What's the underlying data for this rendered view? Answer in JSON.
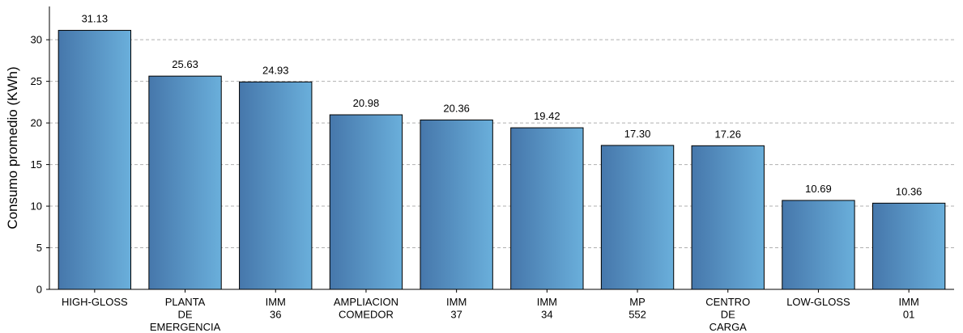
{
  "chart_data": {
    "type": "bar",
    "title": "",
    "xlabel": "",
    "ylabel": "Consumo promedio (KWh)",
    "ylim": [
      0,
      34
    ],
    "yticks": [
      0,
      5,
      10,
      15,
      20,
      25,
      30
    ],
    "grid": "horizontal dashed",
    "categories": [
      [
        "HIGH-GLOSS"
      ],
      [
        "PLANTA",
        "DE",
        "EMERGENCIA"
      ],
      [
        "IMM",
        "36"
      ],
      [
        "AMPLIACION",
        "COMEDOR"
      ],
      [
        "IMM",
        "37"
      ],
      [
        "IMM",
        "34"
      ],
      [
        "MP",
        "552"
      ],
      [
        "CENTRO",
        "DE",
        "CARGA"
      ],
      [
        "LOW-GLOSS"
      ],
      [
        "IMM",
        "01"
      ]
    ],
    "values": [
      31.13,
      25.63,
      24.93,
      20.98,
      20.36,
      19.42,
      17.3,
      17.26,
      10.69,
      10.36
    ],
    "value_labels": [
      "31.13",
      "25.63",
      "24.93",
      "20.98",
      "20.36",
      "19.42",
      "17.30",
      "17.26",
      "10.69",
      "10.36"
    ],
    "colors": {
      "bar_start": "#4677ab",
      "bar_end": "#6aafdb",
      "grid": "#b0b0b0",
      "edge": "#000000"
    }
  }
}
